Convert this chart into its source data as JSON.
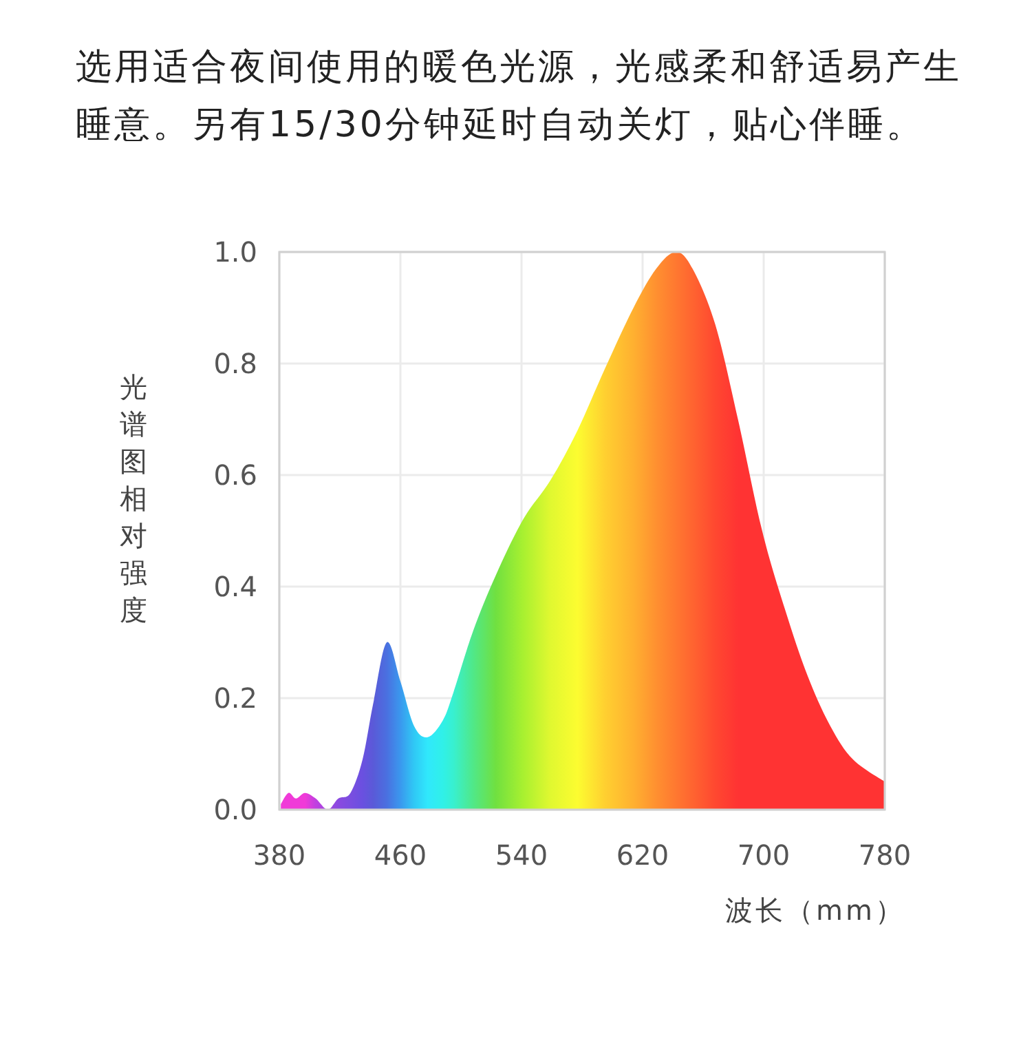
{
  "chart_data": {
    "type": "area",
    "title": "选用适合夜间使用的暖色光源，光感柔和舒适易产生睡意。另有15/30分钟延时自动关灯，贴心伴睡。",
    "xlabel": "波长（mm）",
    "ylabel": "光谱图相对强度",
    "x": [
      381,
      386,
      391,
      397,
      404,
      412,
      419,
      427,
      435,
      442,
      451,
      460,
      469,
      478,
      488,
      495,
      508,
      523,
      541,
      559,
      577,
      595,
      614,
      629,
      642,
      653,
      668,
      683,
      699,
      714,
      729,
      744,
      759,
      780
    ],
    "values": [
      0.01,
      0.03,
      0.02,
      0.03,
      0.02,
      0,
      0.02,
      0.03,
      0.09,
      0.19,
      0.3,
      0.23,
      0.15,
      0.13,
      0.16,
      0.21,
      0.32,
      0.42,
      0.52,
      0.59,
      0.68,
      0.79,
      0.9,
      0.97,
      1.0,
      0.97,
      0.87,
      0.7,
      0.5,
      0.36,
      0.24,
      0.15,
      0.09,
      0.05
    ],
    "colors": [
      "#f03ad8",
      "#f03ad8",
      "#f03ad8",
      "#f03ad8",
      "#c040e0",
      "#a046e0",
      "#8a4ae0",
      "#7a4ee0",
      "#6a50e0",
      "#5a5ad8",
      "#4a70e0",
      "#3a98ee",
      "#30c8f5",
      "#30e8fc",
      "#30f0e8",
      "#38f0d0",
      "#50e888",
      "#70e040",
      "#a8f030",
      "#e0f830",
      "#fcfc30",
      "#ffd030",
      "#ffb030",
      "#ff9030",
      "#ff7830",
      "#ff6430",
      "#ff4830",
      "#ff3333",
      "#ff3333",
      "#ff3333",
      "#ff3333",
      "#ff3333",
      "#ff3333",
      "#ff3333"
    ],
    "xlim": [
      380,
      780
    ],
    "xticks": [
      380,
      460,
      540,
      620,
      700,
      780
    ],
    "ylim": [
      0,
      1
    ],
    "yticks": [
      {
        "value": 0,
        "label": "0.0"
      },
      {
        "value": 0.2,
        "label": "0.2"
      },
      {
        "value": 0.4,
        "label": "0.4"
      },
      {
        "value": 0.6,
        "label": "0.6"
      },
      {
        "value": 0.8,
        "label": "0.8"
      },
      {
        "value": 1,
        "label": "1.0"
      }
    ],
    "grid": true
  }
}
